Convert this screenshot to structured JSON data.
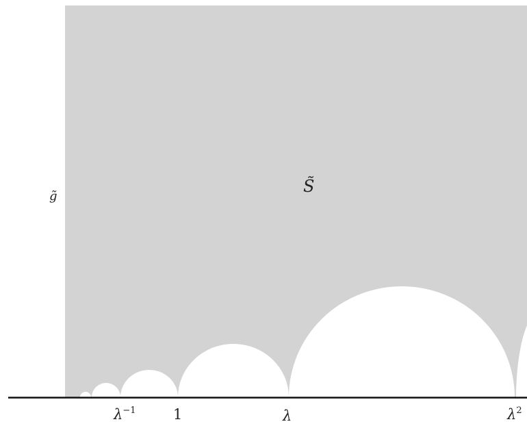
{
  "figure": {
    "colors": {
      "region_fill": "#d3d3d3",
      "disk_fill": "#ffffff",
      "axis_line": "#111111",
      "text": "#222222"
    },
    "labels": {
      "region": "S̃",
      "curve": "g̃",
      "lambda_inv_base": "λ",
      "lambda_inv_exp": "−1",
      "one": "1",
      "lambda": "λ",
      "lambda_sq_base": "λ",
      "lambda_sq_exp": "2"
    }
  }
}
